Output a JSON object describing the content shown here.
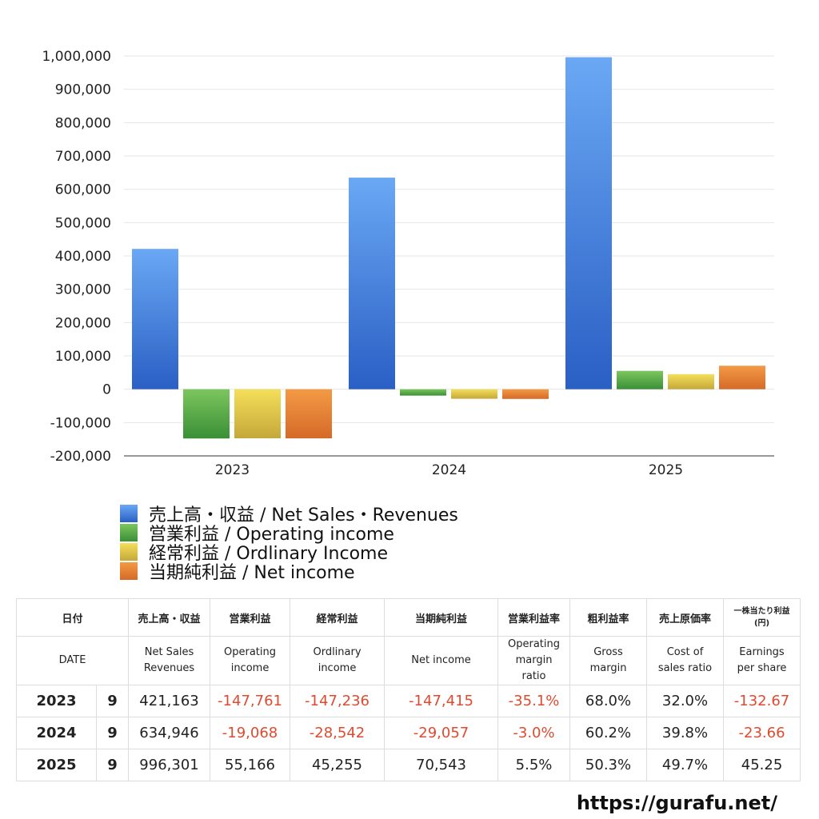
{
  "chart_data": {
    "type": "bar",
    "categories": [
      "2023",
      "2024",
      "2025"
    ],
    "series": [
      {
        "name": "売上高・収益 / Net Sales・Revenues",
        "values": [
          421163,
          634946,
          996301
        ],
        "color_top": "#6aa8f4",
        "color_bottom": "#2a5fc4"
      },
      {
        "name": "営業利益 / Operating income",
        "values": [
          -147761,
          -19068,
          55166
        ],
        "color_top": "#7cc65e",
        "color_bottom": "#3a8f36"
      },
      {
        "name": "経常利益 / Ordlinary Income",
        "values": [
          -147236,
          -28542,
          45255
        ],
        "color_top": "#f4df5a",
        "color_bottom": "#c5a83a"
      },
      {
        "name": "当期純利益 / Net income",
        "values": [
          -147415,
          -29057,
          70543
        ],
        "color_top": "#f39a45",
        "color_bottom": "#d56a28"
      }
    ],
    "ylim": [
      -200000,
      1000000
    ],
    "yticks": [
      "1,000,000",
      "900,000",
      "800,000",
      "700,000",
      "600,000",
      "500,000",
      "400,000",
      "300,000",
      "200,000",
      "100,000",
      "0",
      "-100,000",
      "-200,000"
    ],
    "ytick_values": [
      1000000,
      900000,
      800000,
      700000,
      600000,
      500000,
      400000,
      300000,
      200000,
      100000,
      0,
      -100000,
      -200000
    ],
    "grid": true,
    "legend_position": "bottom-left"
  },
  "table": {
    "headers_jp": [
      "日付",
      "売上高・収益",
      "営業利益",
      "経常利益",
      "当期純利益",
      "営業利益率",
      "粗利益率",
      "売上原価率",
      "一株当たり利益\n(円)"
    ],
    "headers_en": [
      "DATE",
      "Net Sales\nRevenues",
      "Operating\nincome",
      "Ordlinary\nincome",
      "Net income",
      "Operating\nmargin\nratio",
      "Gross\nmargin",
      "Cost of\nsales ratio",
      "Earnings\nper share"
    ],
    "rows": [
      {
        "year": "2023",
        "month": "9",
        "sales": "421,163",
        "op": "-147,761",
        "ord": "-147,236",
        "net": "-147,415",
        "opm": "-35.1%",
        "gross": "68.0%",
        "cost": "32.0%",
        "eps": "-132.67"
      },
      {
        "year": "2024",
        "month": "9",
        "sales": "634,946",
        "op": "-19,068",
        "ord": "-28,542",
        "net": "-29,057",
        "opm": "-3.0%",
        "gross": "60.2%",
        "cost": "39.8%",
        "eps": "-23.66"
      },
      {
        "year": "2025",
        "month": "9",
        "sales": "996,301",
        "op": "55,166",
        "ord": "45,255",
        "net": "70,543",
        "opm": "5.5%",
        "gross": "50.3%",
        "cost": "49.7%",
        "eps": "45.25"
      }
    ]
  },
  "site_url": "https://gurafu.net/"
}
